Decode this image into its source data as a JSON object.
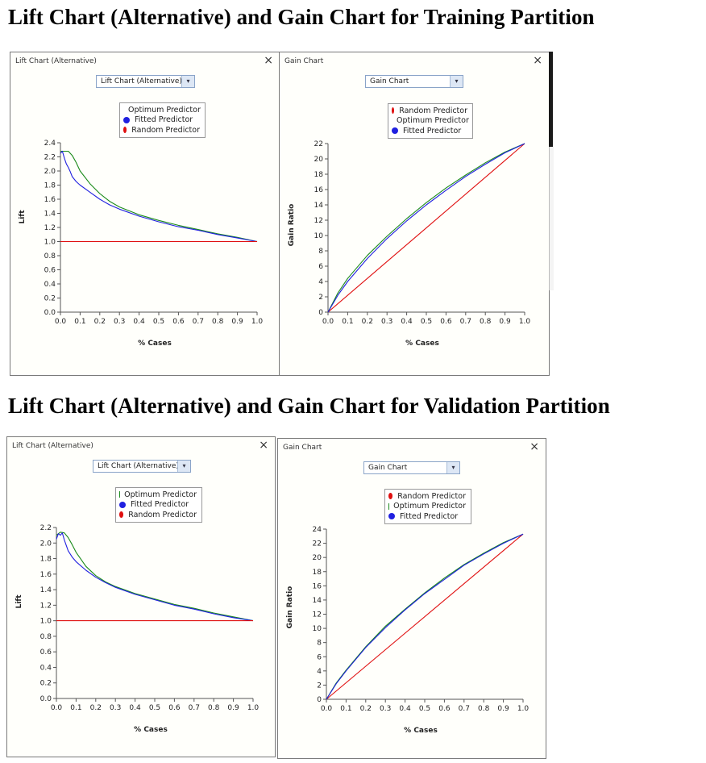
{
  "headings": {
    "training": "Lift Chart (Alternative) and Gain Chart for Training Partition",
    "validation": "Lift Chart (Alternative) and Gain Chart for Validation Partition"
  },
  "colors": {
    "optimum": "#1a8a1a",
    "fitted": "#2020e0",
    "random": "#e01010"
  },
  "panels": {
    "train_lift": {
      "window_title": "Lift Chart (Alternative)",
      "close": "×",
      "dropdown": "Lift Chart (Alternative)",
      "dropdown_arrow": "▾",
      "legend": [
        {
          "label": "Optimum Predictor",
          "color": "#1a8a1a"
        },
        {
          "label": "Fitted Predictor",
          "color": "#2020e0"
        },
        {
          "label": "Random Predictor",
          "color": "#e01010"
        }
      ],
      "xlabel": "% Cases",
      "ylabel": "Lift"
    },
    "train_gain": {
      "window_title": "Gain Chart",
      "close": "×",
      "dropdown": "Gain Chart",
      "dropdown_arrow": "▾",
      "legend": [
        {
          "label": "Random Predictor",
          "color": "#e01010"
        },
        {
          "label": "Optimum Predictor",
          "color": "#1a8a1a"
        },
        {
          "label": "Fitted Predictor",
          "color": "#2020e0"
        }
      ],
      "xlabel": "% Cases",
      "ylabel": "Gain Ratio"
    },
    "val_lift": {
      "window_title": "Lift Chart (Alternative)",
      "close": "×",
      "dropdown": "Lift Chart (Alternative)",
      "dropdown_arrow": "▾",
      "legend": [
        {
          "label": "Optimum Predictor",
          "color": "#1a8a1a"
        },
        {
          "label": "Fitted Predictor",
          "color": "#2020e0"
        },
        {
          "label": "Random Predictor",
          "color": "#e01010"
        }
      ],
      "xlabel": "% Cases",
      "ylabel": "Lift"
    },
    "val_gain": {
      "window_title": "Gain Chart",
      "close": "×",
      "dropdown": "Gain Chart",
      "dropdown_arrow": "▾",
      "legend": [
        {
          "label": "Random Predictor",
          "color": "#e01010"
        },
        {
          "label": "Optimum Predictor",
          "color": "#1a8a1a"
        },
        {
          "label": "Fitted Predictor",
          "color": "#2020e0"
        }
      ],
      "xlabel": "% Cases",
      "ylabel": "Gain Ratio"
    }
  },
  "chart_data": [
    {
      "id": "train_lift",
      "type": "line",
      "title": "Lift Chart (Alternative)",
      "xlabel": "% Cases",
      "ylabel": "Lift",
      "xlim": [
        0,
        1
      ],
      "ylim": [
        0,
        2.4
      ],
      "xticks": [
        "0.0",
        "0.1",
        "0.2",
        "0.3",
        "0.4",
        "0.5",
        "0.6",
        "0.7",
        "0.8",
        "0.9",
        "1.0"
      ],
      "yticks": [
        "0.0",
        "0.2",
        "0.4",
        "0.6",
        "0.8",
        "1.0",
        "1.2",
        "1.4",
        "1.6",
        "1.8",
        "2.0",
        "2.2",
        "2.4"
      ],
      "series": [
        {
          "name": "Optimum Predictor",
          "color": "#1a8a1a",
          "x": [
            0.0,
            0.04,
            0.06,
            0.08,
            0.1,
            0.15,
            0.2,
            0.25,
            0.3,
            0.4,
            0.5,
            0.6,
            0.7,
            0.8,
            0.9,
            1.0
          ],
          "y": [
            2.28,
            2.28,
            2.22,
            2.12,
            2.0,
            1.82,
            1.68,
            1.57,
            1.49,
            1.38,
            1.3,
            1.23,
            1.17,
            1.11,
            1.06,
            1.0
          ]
        },
        {
          "name": "Fitted Predictor",
          "color": "#2020e0",
          "x": [
            0.0,
            0.01,
            0.02,
            0.03,
            0.04,
            0.05,
            0.06,
            0.08,
            0.1,
            0.15,
            0.2,
            0.25,
            0.3,
            0.4,
            0.5,
            0.6,
            0.7,
            0.8,
            0.9,
            1.0
          ],
          "y": [
            2.25,
            2.28,
            2.18,
            2.1,
            2.05,
            1.99,
            1.92,
            1.85,
            1.8,
            1.7,
            1.6,
            1.52,
            1.46,
            1.36,
            1.28,
            1.21,
            1.16,
            1.1,
            1.05,
            1.0
          ]
        },
        {
          "name": "Random Predictor",
          "color": "#e01010",
          "x": [
            0.0,
            1.0
          ],
          "y": [
            1.0,
            1.0
          ]
        }
      ]
    },
    {
      "id": "train_gain",
      "type": "line",
      "title": "Gain Chart",
      "xlabel": "% Cases",
      "ylabel": "Gain Ratio",
      "xlim": [
        0,
        1
      ],
      "ylim": [
        0,
        22
      ],
      "xticks": [
        "0.0",
        "0.1",
        "0.2",
        "0.3",
        "0.4",
        "0.5",
        "0.6",
        "0.7",
        "0.8",
        "0.9",
        "1.0"
      ],
      "yticks": [
        "0",
        "2",
        "4",
        "6",
        "8",
        "10",
        "12",
        "14",
        "16",
        "18",
        "20",
        "22"
      ],
      "series": [
        {
          "name": "Random Predictor",
          "color": "#e01010",
          "x": [
            0.0,
            1.0
          ],
          "y": [
            0.0,
            22.0
          ]
        },
        {
          "name": "Optimum Predictor",
          "color": "#1a8a1a",
          "x": [
            0.0,
            0.05,
            0.1,
            0.2,
            0.3,
            0.4,
            0.5,
            0.6,
            0.7,
            0.8,
            0.9,
            1.0
          ],
          "y": [
            0.0,
            2.5,
            4.4,
            7.4,
            9.9,
            12.2,
            14.3,
            16.2,
            17.9,
            19.5,
            20.9,
            22.0
          ]
        },
        {
          "name": "Fitted Predictor",
          "color": "#2020e0",
          "x": [
            0.0,
            0.05,
            0.1,
            0.2,
            0.3,
            0.4,
            0.5,
            0.6,
            0.7,
            0.8,
            0.9,
            1.0
          ],
          "y": [
            0.0,
            2.2,
            4.0,
            7.0,
            9.6,
            11.9,
            14.0,
            15.9,
            17.7,
            19.3,
            20.8,
            22.0
          ]
        }
      ]
    },
    {
      "id": "val_lift",
      "type": "line",
      "title": "Lift Chart (Alternative)",
      "xlabel": "% Cases",
      "ylabel": "Lift",
      "xlim": [
        0,
        1
      ],
      "ylim": [
        0,
        2.2
      ],
      "xticks": [
        "0.0",
        "0.1",
        "0.2",
        "0.3",
        "0.4",
        "0.5",
        "0.6",
        "0.7",
        "0.8",
        "0.9",
        "1.0"
      ],
      "yticks": [
        "0.0",
        "0.2",
        "0.4",
        "0.6",
        "0.8",
        "1.0",
        "1.2",
        "1.4",
        "1.6",
        "1.8",
        "2.0",
        "2.2"
      ],
      "series": [
        {
          "name": "Optimum Predictor",
          "color": "#1a8a1a",
          "x": [
            0.0,
            0.02,
            0.04,
            0.06,
            0.08,
            0.1,
            0.15,
            0.2,
            0.25,
            0.3,
            0.4,
            0.5,
            0.6,
            0.7,
            0.8,
            0.9,
            1.0
          ],
          "y": [
            2.1,
            2.14,
            2.13,
            2.07,
            1.98,
            1.88,
            1.7,
            1.58,
            1.5,
            1.44,
            1.35,
            1.28,
            1.21,
            1.16,
            1.1,
            1.05,
            1.0
          ]
        },
        {
          "name": "Fitted Predictor",
          "color": "#2020e0",
          "x": [
            0.0,
            0.01,
            0.02,
            0.03,
            0.04,
            0.05,
            0.06,
            0.08,
            0.1,
            0.15,
            0.2,
            0.25,
            0.3,
            0.4,
            0.5,
            0.6,
            0.7,
            0.8,
            0.9,
            1.0
          ],
          "y": [
            2.05,
            2.12,
            2.1,
            2.13,
            2.04,
            1.97,
            1.9,
            1.82,
            1.76,
            1.65,
            1.56,
            1.49,
            1.43,
            1.34,
            1.27,
            1.2,
            1.15,
            1.09,
            1.04,
            1.0
          ]
        },
        {
          "name": "Random Predictor",
          "color": "#e01010",
          "x": [
            0.0,
            1.0
          ],
          "y": [
            1.0,
            1.0
          ]
        }
      ]
    },
    {
      "id": "val_gain",
      "type": "line",
      "title": "Gain Chart",
      "xlabel": "% Cases",
      "ylabel": "Gain Ratio",
      "xlim": [
        0,
        1
      ],
      "ylim": [
        0,
        24
      ],
      "xticks": [
        "0.0",
        "0.1",
        "0.2",
        "0.3",
        "0.4",
        "0.5",
        "0.6",
        "0.7",
        "0.8",
        "0.9",
        "1.0"
      ],
      "yticks": [
        "0",
        "2",
        "4",
        "6",
        "8",
        "10",
        "12",
        "14",
        "16",
        "18",
        "20",
        "22",
        "24"
      ],
      "series": [
        {
          "name": "Random Predictor",
          "color": "#e01010",
          "x": [
            0.0,
            1.0
          ],
          "y": [
            0.0,
            23.3
          ]
        },
        {
          "name": "Optimum Predictor",
          "color": "#1a8a1a",
          "x": [
            0.0,
            0.05,
            0.1,
            0.2,
            0.3,
            0.4,
            0.5,
            0.6,
            0.7,
            0.8,
            0.9,
            1.0
          ],
          "y": [
            0.0,
            2.3,
            4.1,
            7.4,
            10.3,
            12.7,
            15.0,
            17.1,
            19.0,
            20.6,
            22.1,
            23.3
          ]
        },
        {
          "name": "Fitted Predictor",
          "color": "#2020e0",
          "x": [
            0.0,
            0.05,
            0.1,
            0.2,
            0.3,
            0.4,
            0.5,
            0.6,
            0.7,
            0.8,
            0.9,
            1.0
          ],
          "y": [
            0.0,
            2.2,
            4.0,
            7.3,
            10.1,
            12.6,
            14.9,
            16.9,
            18.9,
            20.5,
            22.0,
            23.3
          ]
        }
      ]
    }
  ]
}
